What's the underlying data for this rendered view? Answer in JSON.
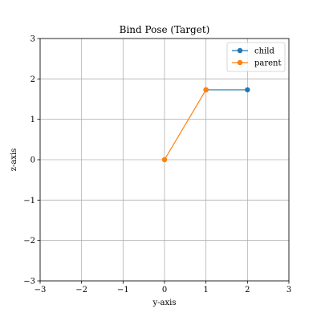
{
  "chart_data": {
    "type": "line",
    "title": "Bind Pose (Target)",
    "xlabel": "y-axis",
    "ylabel": "z-axis",
    "xlim": [
      -3,
      3
    ],
    "ylim": [
      -3,
      3
    ],
    "xticks": [
      -3,
      -2,
      -1,
      0,
      1,
      2,
      3
    ],
    "yticks": [
      -3,
      -2,
      -1,
      0,
      1,
      2,
      3
    ],
    "xtick_labels": [
      "−3",
      "−2",
      "−1",
      "0",
      "1",
      "2",
      "3"
    ],
    "ytick_labels": [
      "−3",
      "−2",
      "−1",
      "0",
      "1",
      "2",
      "3"
    ],
    "grid": true,
    "legend_position": "top-right",
    "series": [
      {
        "name": "child",
        "color": "#1f77b4",
        "x": [
          1,
          2
        ],
        "y": [
          1.73,
          1.73
        ]
      },
      {
        "name": "parent",
        "color": "#ff7f0e",
        "x": [
          0,
          1
        ],
        "y": [
          0,
          1.73
        ]
      }
    ]
  }
}
